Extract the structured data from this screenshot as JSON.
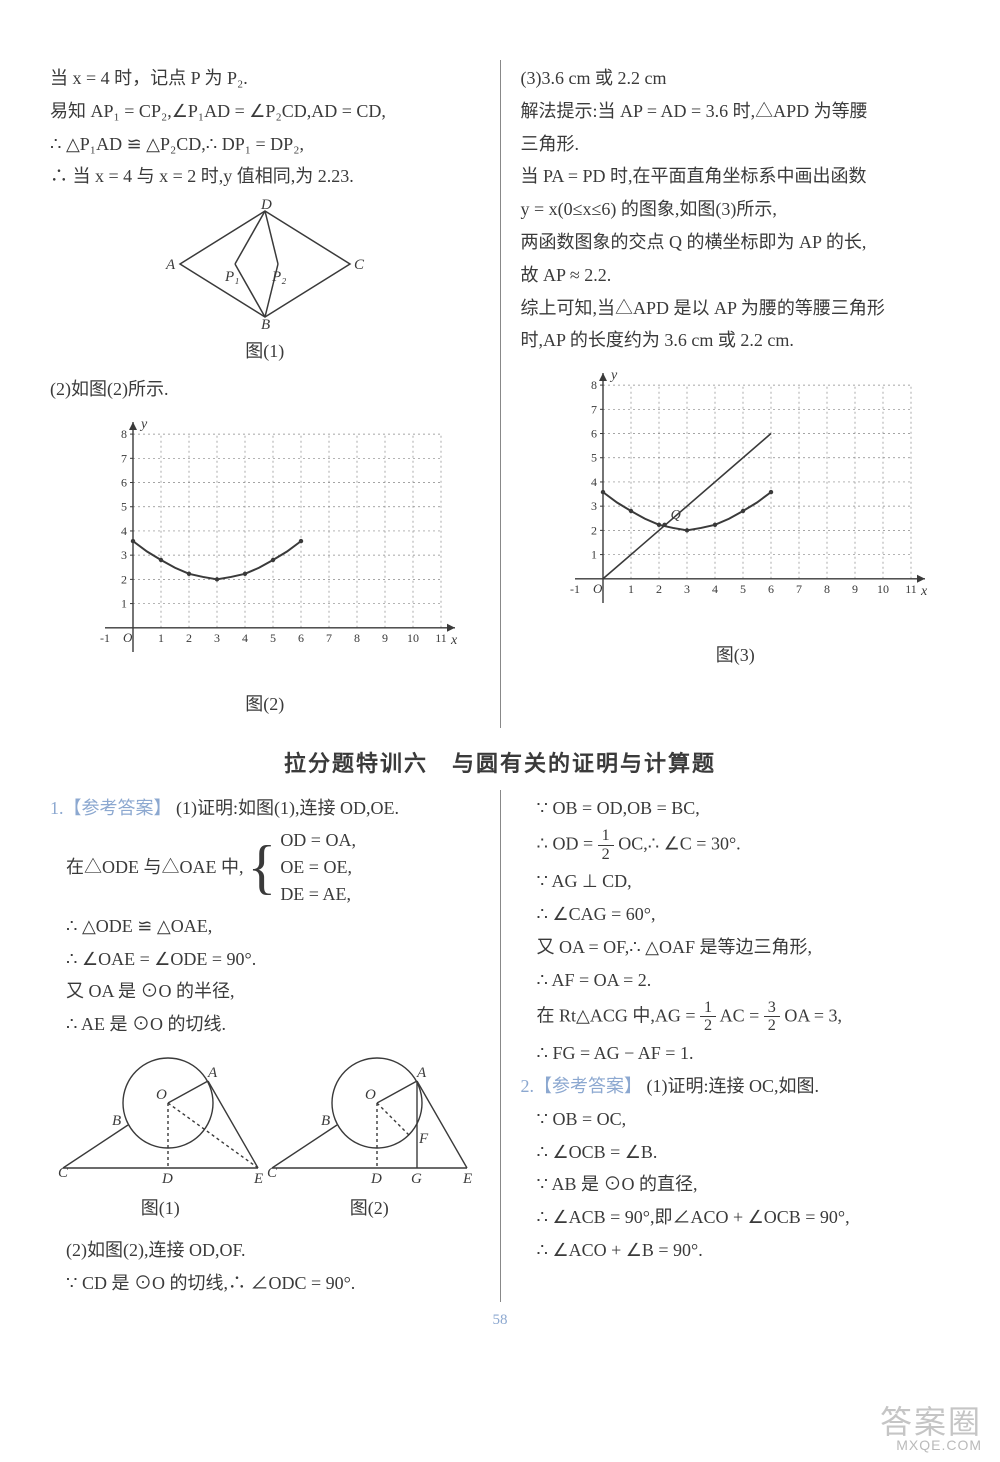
{
  "page_number": "58",
  "section_title": "拉分题特训六　与圆有关的证明与计算题",
  "top": {
    "left": {
      "l1": "当 x = 4 时，记点 P 为 P₂.",
      "l2": "易知 AP₁ = CP₂,∠P₁AD = ∠P₂CD,AD = CD,",
      "l3": "∴ △P₁AD ≌ △P₂CD,∴ DP₁ = DP₂,",
      "l4": "∴ 当 x = 4 与 x = 2 时,y 值相同,为 2.23.",
      "fig1_caption": "图(1)",
      "l5": "(2)如图(2)所示.",
      "fig2_caption": "图(2)",
      "rhombus": {
        "vertices": {
          "A": "A",
          "B": "B",
          "C": "C",
          "D": "D",
          "P1": "P₁",
          "P2": "P₂"
        },
        "stroke": "#3a3a3a"
      },
      "chart2": {
        "type": "line",
        "xlim": [
          -1,
          11.5
        ],
        "ylim": [
          -1,
          8.5
        ],
        "xticks": [
          -1,
          1,
          2,
          3,
          4,
          5,
          6,
          7,
          8,
          9,
          10,
          11
        ],
        "yticks": [
          1,
          2,
          3,
          4,
          5,
          6,
          7,
          8
        ],
        "xtick_labels": [
          "-1",
          "1",
          "2",
          "3",
          "4",
          "5",
          "6",
          "7",
          "8",
          "9",
          "10",
          "11"
        ],
        "ytick_labels": [
          "1",
          "2",
          "3",
          "4",
          "5",
          "6",
          "7",
          "8"
        ],
        "origin_label": "O",
        "xlabel": "x",
        "ylabel": "y",
        "axis_color": "#3a3a3a",
        "grid_color": "#888",
        "curve_color": "#3a3a3a",
        "curve_points": [
          [
            0,
            3.58
          ],
          [
            0.5,
            3.15
          ],
          [
            1,
            2.8
          ],
          [
            1.5,
            2.48
          ],
          [
            2,
            2.23
          ],
          [
            2.5,
            2.1
          ],
          [
            3,
            2.0
          ],
          [
            3.5,
            2.1
          ],
          [
            4,
            2.23
          ],
          [
            4.5,
            2.48
          ],
          [
            5,
            2.8
          ],
          [
            5.5,
            3.15
          ],
          [
            6,
            3.58
          ]
        ]
      }
    },
    "right": {
      "l1": "(3)3.6 cm 或 2.2 cm",
      "l2": "解法提示:当 AP = AD = 3.6 时,△APD 为等腰",
      "l3": "三角形.",
      "l4": "当 PA = PD 时,在平面直角坐标系中画出函数",
      "l5": "y = x(0≤x≤6) 的图象,如图(3)所示,",
      "l6": "两函数图象的交点 Q 的横坐标即为 AP 的长,",
      "l7": "故 AP ≈ 2.2.",
      "l8": "综上可知,当△APD 是以 AP 为腰的等腰三角形",
      "l9": "时,AP 的长度约为 3.6 cm 或 2.2 cm.",
      "fig3_caption": "图(3)",
      "chart3": {
        "type": "line",
        "xlim": [
          -1,
          11.5
        ],
        "ylim": [
          -1,
          8.5
        ],
        "xticks": [
          -1,
          1,
          2,
          3,
          4,
          5,
          6,
          7,
          8,
          9,
          10,
          11
        ],
        "yticks": [
          1,
          2,
          3,
          4,
          5,
          6,
          7,
          8
        ],
        "xtick_labels": [
          "-1",
          "1",
          "2",
          "3",
          "4",
          "5",
          "6",
          "7",
          "8",
          "9",
          "10",
          "11"
        ],
        "ytick_labels": [
          "1",
          "2",
          "3",
          "4",
          "5",
          "6",
          "7",
          "8"
        ],
        "origin_label": "O",
        "xlabel": "x",
        "ylabel": "y",
        "axis_color": "#3a3a3a",
        "grid_color": "#888",
        "curve_color": "#3a3a3a",
        "curve_points": [
          [
            0,
            3.58
          ],
          [
            0.5,
            3.15
          ],
          [
            1,
            2.8
          ],
          [
            1.5,
            2.48
          ],
          [
            2,
            2.23
          ],
          [
            2.5,
            2.1
          ],
          [
            3,
            2.0
          ],
          [
            3.5,
            2.1
          ],
          [
            4,
            2.23
          ],
          [
            4.5,
            2.48
          ],
          [
            5,
            2.8
          ],
          [
            5.5,
            3.15
          ],
          [
            6,
            3.58
          ]
        ],
        "line_points": [
          [
            0,
            0
          ],
          [
            6,
            6
          ]
        ],
        "q_label": "Q",
        "q_pos": [
          2.2,
          2.23
        ]
      }
    }
  },
  "bottom": {
    "left": {
      "ref": "1.【参考答案】",
      "l1": "(1)证明:如图(1),连接 OD,OE.",
      "l2a": "在△ODE 与△OAE 中,",
      "brace": {
        "b1": "OD = OA,",
        "b2": "OE = OE,",
        "b3": "DE = AE,"
      },
      "l3": "∴ △ODE ≌ △OAE,",
      "l4": "∴ ∠OAE = ∠ODE = 90°.",
      "l5": "又 OA 是 ⊙O 的半径,",
      "l6": "∴ AE 是 ⊙O 的切线.",
      "fig1_caption": "图(1)",
      "fig2_caption": "图(2)",
      "circle_labels": {
        "A": "A",
        "B": "B",
        "C": "C",
        "D": "D",
        "E": "E",
        "O": "O",
        "F": "F",
        "G": "G"
      },
      "l7": "(2)如图(2),连接 OD,OF.",
      "l8": "∵ CD 是 ⊙O 的切线,∴ ∠ODC = 90°."
    },
    "right": {
      "l1": "∵ OB = OD,OB = BC,",
      "l2a": "∴ OD = ",
      "frac1_num": "1",
      "frac1_den": "2",
      "l2b": "OC,∴ ∠C = 30°.",
      "l3": "∵ AG ⊥ CD,",
      "l4": "∴ ∠CAG = 60°,",
      "l5": "又 OA = OF,∴ △OAF 是等边三角形,",
      "l6": "∴ AF = OA = 2.",
      "l7a": "在 Rt△ACG 中,AG = ",
      "frac2_num": "1",
      "frac2_den": "2",
      "l7b": "AC = ",
      "frac3_num": "3",
      "frac3_den": "2",
      "l7c": "OA = 3,",
      "l8": "∴ FG = AG − AF = 1.",
      "ref2": "2.【参考答案】",
      "l9": "(1)证明:连接 OC,如图.",
      "l10": "∵ OB = OC,",
      "l11": "∴ ∠OCB = ∠B.",
      "l12": "∵ AB 是 ⊙O 的直径,",
      "l13": "∴ ∠ACB = 90°,即∠ACO + ∠OCB = 90°,",
      "l14": "∴ ∠ACO + ∠B = 90°."
    }
  },
  "watermark": {
    "big": "答案圈",
    "small": "MXQE.COM"
  }
}
